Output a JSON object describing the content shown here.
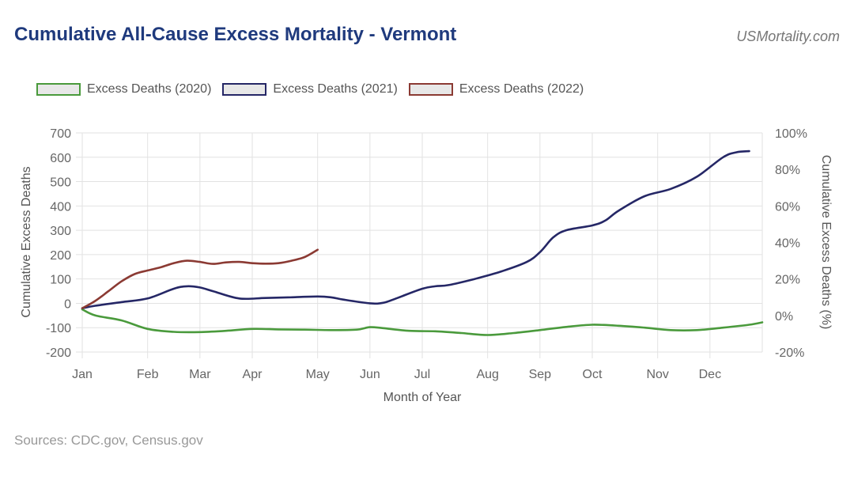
{
  "header": {
    "title": "Cumulative All-Cause Excess Mortality - Vermont",
    "brand": "USMortality.com"
  },
  "footer": {
    "source": "Sources: CDC.gov, Census.gov"
  },
  "chart_data": {
    "type": "line",
    "title": "Cumulative All-Cause Excess Mortality - Vermont",
    "xlabel": "Month of Year",
    "ylabel": "Cumulative Excess Deaths",
    "y2label": "Cumulative Excess Deaths (%)",
    "x_range": [
      1,
      53
    ],
    "ylim": [
      -200,
      700
    ],
    "y_ticks": [
      700,
      600,
      500,
      400,
      300,
      200,
      100,
      0,
      -100,
      -200
    ],
    "y2lim": [
      -20,
      100
    ],
    "y2_ticks": [
      "100%",
      "80%",
      "60%",
      "40%",
      "20%",
      "0%",
      "-20%"
    ],
    "x_ticks": [
      {
        "label": "Jan",
        "week": 1
      },
      {
        "label": "Feb",
        "week": 6
      },
      {
        "label": "Mar",
        "week": 10
      },
      {
        "label": "Apr",
        "week": 14
      },
      {
        "label": "May",
        "week": 19
      },
      {
        "label": "Jun",
        "week": 23
      },
      {
        "label": "Jul",
        "week": 27
      },
      {
        "label": "Aug",
        "week": 32
      },
      {
        "label": "Sep",
        "week": 36
      },
      {
        "label": "Oct",
        "week": 40
      },
      {
        "label": "Nov",
        "week": 45
      },
      {
        "label": "Dec",
        "week": 49
      }
    ],
    "grid": true,
    "legend": "top-left",
    "series": [
      {
        "name": "Excess Deaths (2020)",
        "color": "#4a9a3c",
        "x": [
          1,
          2,
          4,
          6,
          8,
          10,
          12,
          14,
          16,
          18,
          20,
          22,
          23,
          24,
          26,
          28,
          30,
          32,
          34,
          36,
          38,
          40,
          42,
          44,
          46,
          48,
          50,
          52,
          53
        ],
        "values": [
          -25,
          -50,
          -70,
          -105,
          -117,
          -118,
          -113,
          -105,
          -107,
          -108,
          -110,
          -108,
          -98,
          -102,
          -113,
          -115,
          -122,
          -130,
          -122,
          -110,
          -97,
          -88,
          -92,
          -100,
          -110,
          -110,
          -100,
          -88,
          -78
        ]
      },
      {
        "name": "Excess Deaths (2021)",
        "color": "#252766",
        "x": [
          1,
          2,
          4,
          6,
          8,
          9,
          10,
          11,
          13,
          15,
          17,
          19,
          20,
          21,
          23,
          24,
          25,
          27,
          28,
          29,
          31,
          33,
          35,
          36,
          37,
          38,
          40,
          41,
          42,
          44,
          46,
          48,
          50,
          51,
          52
        ],
        "values": [
          -20,
          -10,
          5,
          20,
          60,
          70,
          65,
          50,
          20,
          22,
          25,
          28,
          25,
          15,
          0,
          2,
          20,
          60,
          70,
          75,
          100,
          130,
          170,
          210,
          270,
          300,
          320,
          340,
          380,
          440,
          470,
          520,
          600,
          620,
          625
        ]
      },
      {
        "name": "Excess Deaths (2022)",
        "color": "#8b3a33",
        "x": [
          1,
          2,
          3,
          4,
          5,
          6,
          7,
          8,
          9,
          10,
          11,
          12,
          13,
          14,
          15,
          16,
          17,
          18,
          19
        ],
        "values": [
          -20,
          10,
          50,
          90,
          120,
          135,
          148,
          165,
          175,
          170,
          162,
          168,
          170,
          165,
          163,
          165,
          175,
          190,
          220
        ]
      }
    ]
  }
}
